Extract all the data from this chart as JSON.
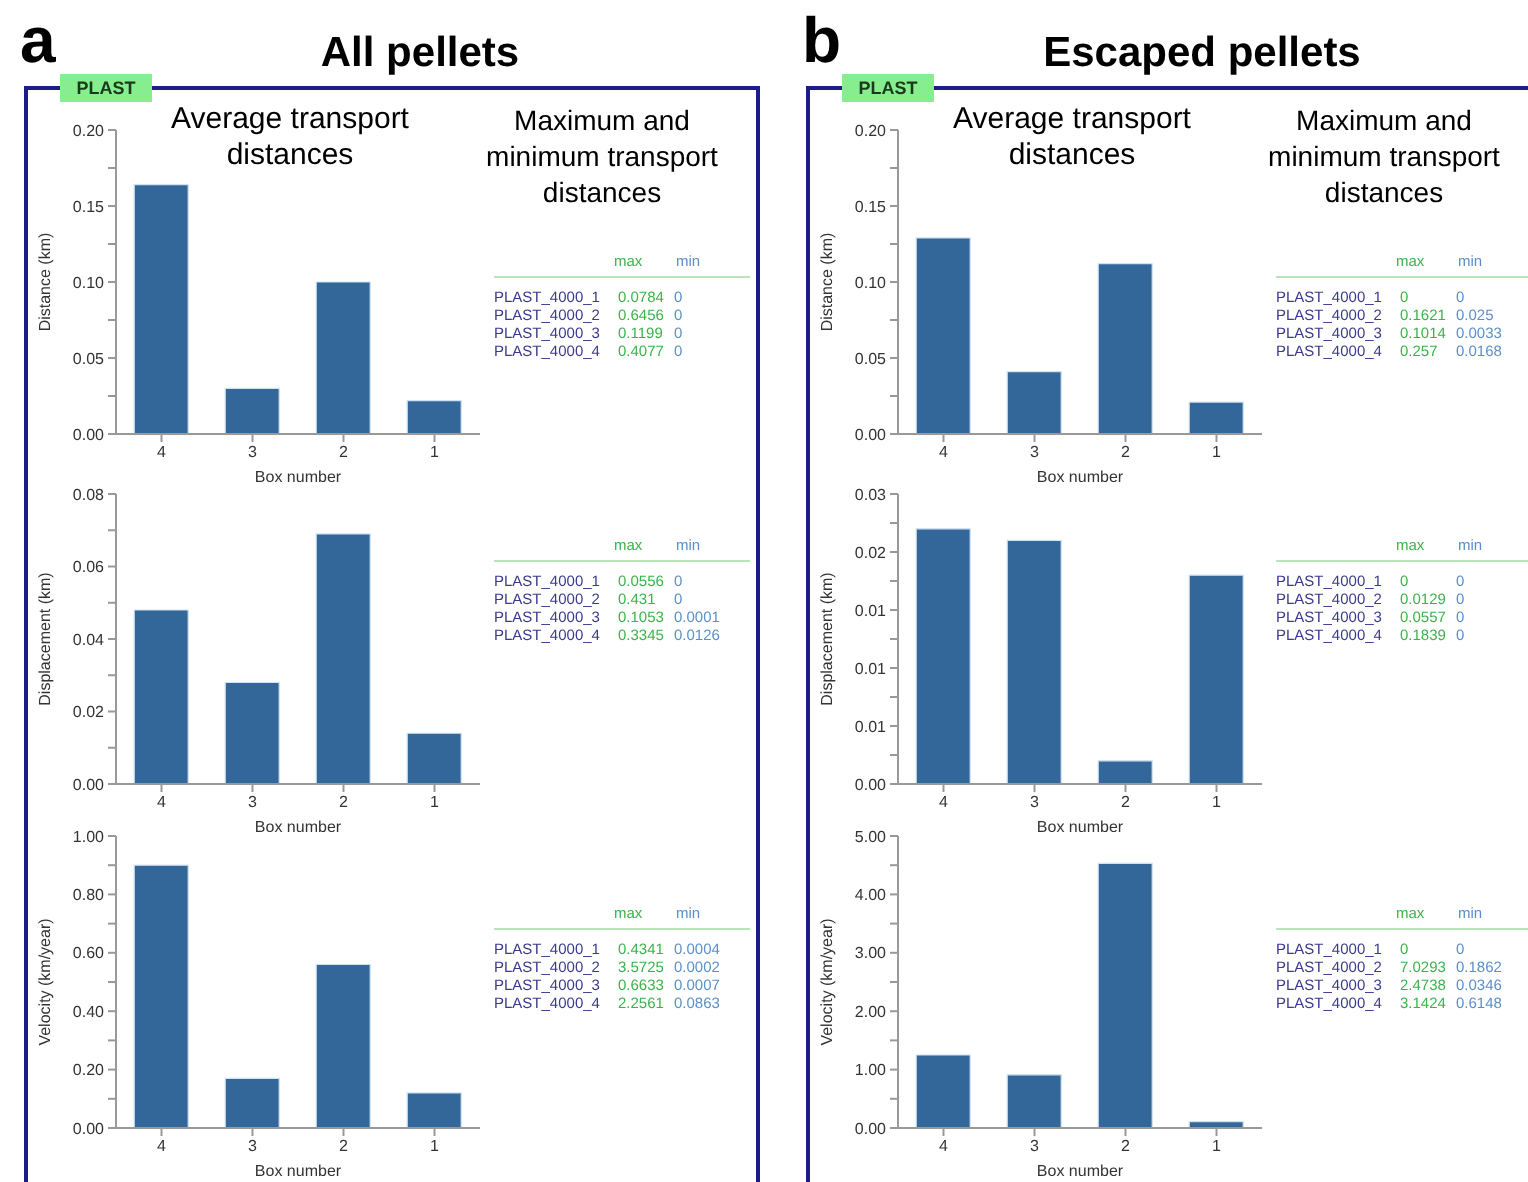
{
  "chart_data": [
    {
      "type": "bar",
      "title": "All pellets",
      "subtitle": "Average transport distances",
      "categories": [
        "4",
        "3",
        "2",
        "1"
      ],
      "values": [
        0.164,
        0.03,
        0.1,
        0.022
      ],
      "color": "#336699",
      "xlabel": "Box number",
      "ylabel": "Distance (km)",
      "ylim": [
        0,
        0.2
      ],
      "yticks": [
        {
          "value": 0,
          "label": "0.00"
        },
        {
          "value": 0.025,
          "label": null
        },
        {
          "value": 0.05,
          "label": "0.05"
        },
        {
          "value": 0.075,
          "label": null
        },
        {
          "value": 0.1,
          "label": "0.10"
        },
        {
          "value": 0.125,
          "label": null
        },
        {
          "value": 0.15,
          "label": "0.15"
        },
        {
          "value": 0.175,
          "label": null
        },
        {
          "value": 0.2,
          "label": "0.20"
        }
      ],
      "annotations": [
        "a",
        "PLAST",
        "Maximum and minimum transport distances",
        "max",
        "min",
        "PLAST_4000_1",
        "0.0784",
        "0",
        "PLAST_4000_2",
        "0.6456",
        "0",
        "PLAST_4000_3",
        "0.1199",
        "0",
        "PLAST_4000_4",
        "0.4077",
        "0"
      ]
    },
    {
      "type": "bar",
      "categories": [
        "4",
        "3",
        "2",
        "1"
      ],
      "values": [
        0.048,
        0.028,
        0.069,
        0.014
      ],
      "color": "#336699",
      "xlabel": "Box number",
      "ylabel": "Displacement (km)",
      "ylim": [
        0,
        0.08
      ],
      "yticks": [
        {
          "value": 0,
          "label": "0.00"
        },
        {
          "value": 0.01,
          "label": null
        },
        {
          "value": 0.02,
          "label": "0.02"
        },
        {
          "value": 0.03,
          "label": null
        },
        {
          "value": 0.04,
          "label": "0.04"
        },
        {
          "value": 0.05,
          "label": null
        },
        {
          "value": 0.06,
          "label": "0.06"
        },
        {
          "value": 0.07,
          "label": null
        },
        {
          "value": 0.08,
          "label": "0.08"
        }
      ],
      "annotations": [
        "max",
        "min",
        "PLAST_4000_1",
        "0.0556",
        "0",
        "PLAST_4000_2",
        "0.431",
        "0",
        "PLAST_4000_3",
        "0.1053",
        "0.0001",
        "PLAST_4000_4",
        "0.3345",
        "0.0126"
      ]
    },
    {
      "type": "bar",
      "categories": [
        "4",
        "3",
        "2",
        "1"
      ],
      "values": [
        0.9,
        0.17,
        0.56,
        0.12
      ],
      "color": "#336699",
      "xlabel": "Box number",
      "ylabel": "Velocity (km/year)",
      "ylim": [
        0,
        1
      ],
      "yticks": [
        {
          "value": 0,
          "label": "0.00"
        },
        {
          "value": 0.1,
          "label": null
        },
        {
          "value": 0.2,
          "label": "0.20"
        },
        {
          "value": 0.3,
          "label": null
        },
        {
          "value": 0.4,
          "label": "0.40"
        },
        {
          "value": 0.5,
          "label": null
        },
        {
          "value": 0.6,
          "label": "0.60"
        },
        {
          "value": 0.7,
          "label": null
        },
        {
          "value": 0.8,
          "label": "0.80"
        },
        {
          "value": 0.9,
          "label": null
        },
        {
          "value": 1,
          "label": "1.00"
        }
      ],
      "annotations": [
        "max",
        "min",
        "PLAST_4000_1",
        "0.4341",
        "0.0004",
        "PLAST_4000_2",
        "3.5725",
        "0.0002",
        "PLAST_4000_3",
        "0.6633",
        "0.0007",
        "PLAST_4000_4",
        "2.2561",
        "0.0863"
      ]
    },
    {
      "type": "bar",
      "title": "Escaped pellets",
      "subtitle": "Average transport distances",
      "categories": [
        "4",
        "3",
        "2",
        "1"
      ],
      "values": [
        0.129,
        0.041,
        0.112,
        0.021
      ],
      "color": "#336699",
      "xlabel": "Box number",
      "ylabel": "Distance (km)",
      "ylim": [
        0,
        0.2
      ],
      "yticks": [
        {
          "value": 0,
          "label": "0.00"
        },
        {
          "value": 0.025,
          "label": null
        },
        {
          "value": 0.05,
          "label": "0.05"
        },
        {
          "value": 0.075,
          "label": null
        },
        {
          "value": 0.1,
          "label": "0.10"
        },
        {
          "value": 0.125,
          "label": null
        },
        {
          "value": 0.15,
          "label": "0.15"
        },
        {
          "value": 0.175,
          "label": null
        },
        {
          "value": 0.2,
          "label": "0.20"
        }
      ],
      "annotations": [
        "b",
        "PLAST",
        "Maximum and minimum transport distances",
        "max",
        "min",
        "PLAST_4000_1",
        "0",
        "0",
        "PLAST_4000_2",
        "0.1621",
        "0.025",
        "PLAST_4000_3",
        "0.1014",
        "0.0033",
        "PLAST_4000_4",
        "0.257",
        "0.0168"
      ]
    },
    {
      "type": "bar",
      "categories": [
        "4",
        "3",
        "2",
        "1"
      ],
      "values": [
        0.022,
        0.021,
        0.002,
        0.018
      ],
      "color": "#336699",
      "xlabel": "Box number",
      "ylabel": "Displacement (km)",
      "ylim": [
        0,
        0.025
      ],
      "yticks": [
        {
          "value": 0,
          "label": "0.00"
        },
        {
          "value": 0.0025,
          "label": null
        },
        {
          "value": 0.005,
          "label": "0.01"
        },
        {
          "value": 0.0075,
          "label": null
        },
        {
          "value": 0.01,
          "label": "0.01"
        },
        {
          "value": 0.0125,
          "label": null
        },
        {
          "value": 0.015,
          "label": "0.01"
        },
        {
          "value": 0.0175,
          "label": null
        },
        {
          "value": 0.02,
          "label": "0.02"
        },
        {
          "value": 0.0225,
          "label": null
        },
        {
          "value": 0.025,
          "label": "0.03"
        }
      ],
      "annotations": [
        "max",
        "min",
        "PLAST_4000_1",
        "0",
        "0",
        "PLAST_4000_2",
        "0.0129",
        "0",
        "PLAST_4000_3",
        "0.0557",
        "0",
        "PLAST_4000_4",
        "0.1839",
        "0"
      ]
    },
    {
      "type": "bar",
      "categories": [
        "4",
        "3",
        "2",
        "1"
      ],
      "values": [
        1.25,
        0.91,
        4.53,
        0.11
      ],
      "color": "#336699",
      "xlabel": "Box number",
      "ylabel": "Velocity (km/year)",
      "ylim": [
        0,
        5
      ],
      "yticks": [
        {
          "value": 0,
          "label": "0.00"
        },
        {
          "value": 0.5,
          "label": null
        },
        {
          "value": 1,
          "label": "1.00"
        },
        {
          "value": 1.5,
          "label": null
        },
        {
          "value": 2,
          "label": "2.00"
        },
        {
          "value": 2.5,
          "label": null
        },
        {
          "value": 3,
          "label": "3.00"
        },
        {
          "value": 3.5,
          "label": null
        },
        {
          "value": 4,
          "label": "4.00"
        },
        {
          "value": 4.5,
          "label": null
        },
        {
          "value": 5,
          "label": "5.00"
        }
      ],
      "annotations": [
        "max",
        "min",
        "PLAST_4000_1",
        "0",
        "0",
        "PLAST_4000_2",
        "7.0293",
        "0.1862",
        "PLAST_4000_3",
        "2.4738",
        "0.0346",
        "PLAST_4000_4",
        "3.1424",
        "0.6148"
      ]
    }
  ]
}
